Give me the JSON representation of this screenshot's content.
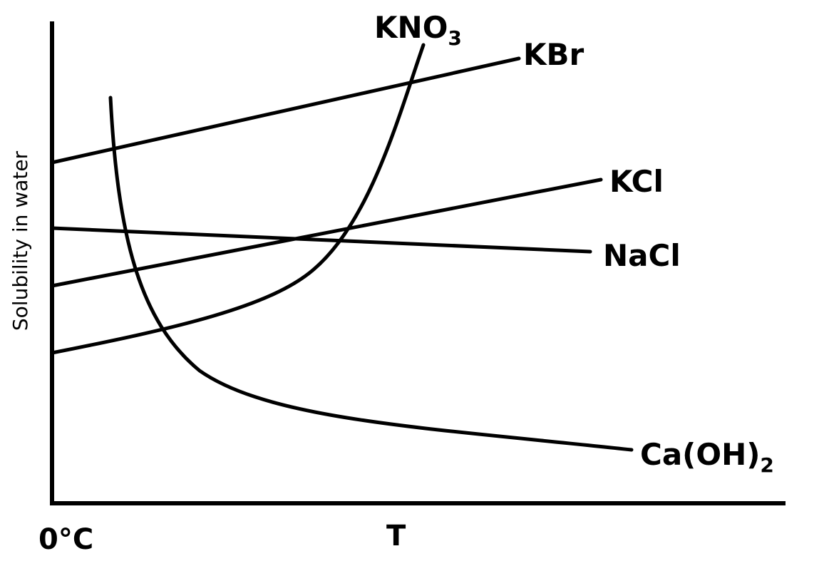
{
  "chart_data": {
    "type": "line",
    "xlabel": "",
    "ylabel": "Solubility in water",
    "x_tick_labels": [
      "0°C",
      "T"
    ],
    "grid": false,
    "axis_ranges_note": "qualitative (no numeric axis scale shown)",
    "series": [
      {
        "name": "KNO",
        "subscript": "3",
        "shape": "steep-rising-convex"
      },
      {
        "name": "KBr",
        "shape": "straight-rising"
      },
      {
        "name": "KCl",
        "shape": "straight-rising"
      },
      {
        "name": "NaCl",
        "shape": "straight-slightly-falling"
      },
      {
        "name": "Ca(OH)",
        "subscript": "2",
        "shape": "steep-falling-convex"
      }
    ]
  }
}
